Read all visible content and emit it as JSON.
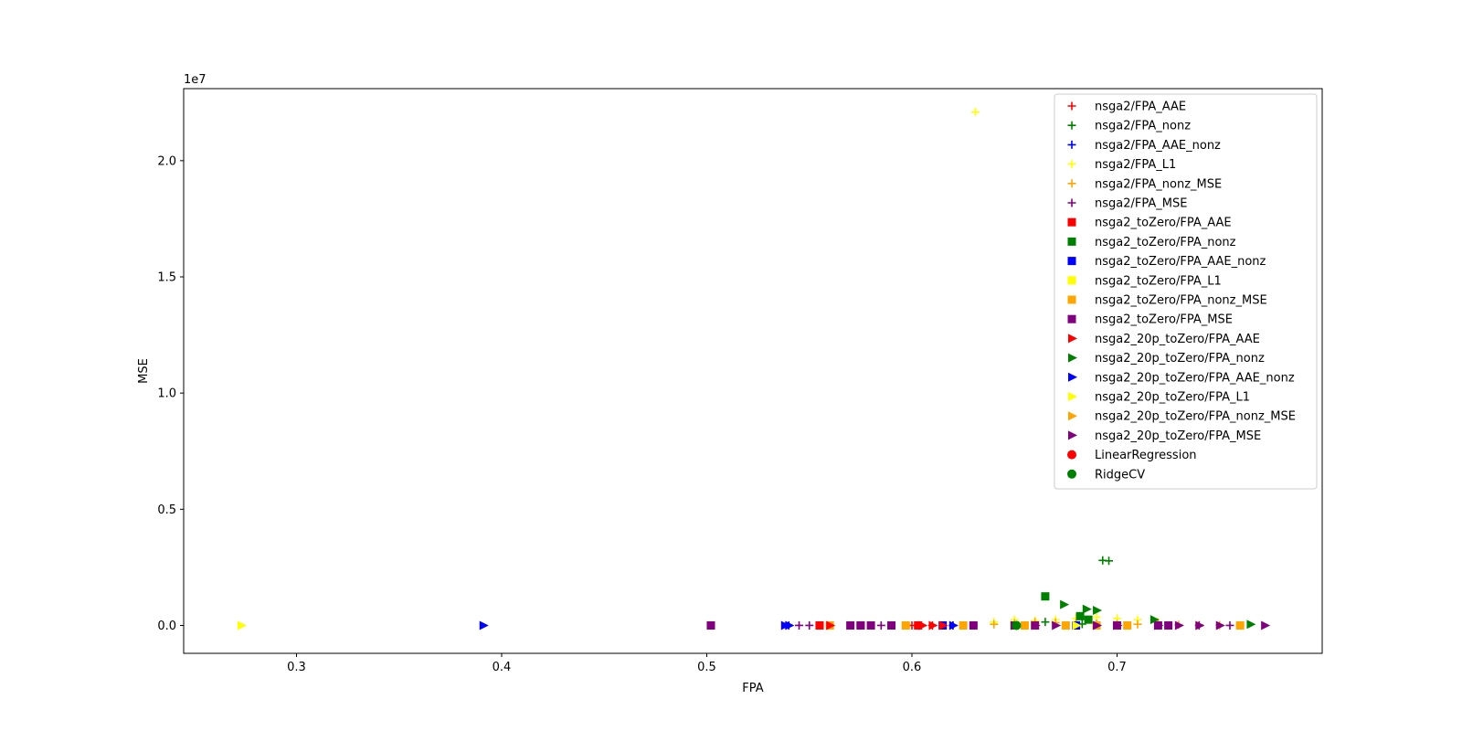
{
  "chart_data": {
    "type": "scatter",
    "xlabel": "FPA",
    "ylabel": "MSE",
    "y_offset_label": "1e7",
    "xlim": [
      0.245,
      0.8
    ],
    "ylim": [
      -1200000,
      23100000
    ],
    "x_ticks": [
      0.3,
      0.4,
      0.5,
      0.6,
      0.7
    ],
    "x_tick_labels": [
      "0.3",
      "0.4",
      "0.5",
      "0.6",
      "0.7"
    ],
    "y_ticks": [
      0,
      5000000,
      10000000,
      15000000,
      20000000
    ],
    "y_tick_labels": [
      "0.0",
      "0.5",
      "1.0",
      "1.5",
      "2.0"
    ],
    "grid": false,
    "legend_position": "upper right",
    "series": [
      {
        "name": "nsga2/FPA_AAE",
        "color": "#ff0000",
        "marker": "plus",
        "x": [
          0.56,
          0.575,
          0.6,
          0.61,
          0.62
        ],
        "y": [
          0,
          0,
          0,
          0,
          0
        ]
      },
      {
        "name": "nsga2/FPA_nonz",
        "color": "#008000",
        "marker": "plus",
        "x": [
          0.693,
          0.696,
          0.665,
          0.683
        ],
        "y": [
          2800000,
          2780000,
          150000,
          60000
        ]
      },
      {
        "name": "nsga2/FPA_AAE_nonz",
        "color": "#0000ff",
        "marker": "plus",
        "x": [
          0.54,
          0.62,
          0.66,
          0.69
        ],
        "y": [
          0,
          0,
          0,
          0
        ]
      },
      {
        "name": "nsga2/FPA_L1",
        "color": "#ffff00",
        "marker": "plus",
        "x": [
          0.631,
          0.64,
          0.65,
          0.66,
          0.67,
          0.68,
          0.69,
          0.7,
          0.71,
          0.72
        ],
        "y": [
          22100000,
          150000,
          250000,
          200000,
          250000,
          300000,
          350000,
          300000,
          250000,
          150000
        ]
      },
      {
        "name": "nsga2/FPA_nonz_MSE",
        "color": "#ffa500",
        "marker": "plus",
        "x": [
          0.64,
          0.65,
          0.66,
          0.67,
          0.68,
          0.69,
          0.7,
          0.71,
          0.72,
          0.73,
          0.74,
          0.75,
          0.76
        ],
        "y": [
          50000,
          100000,
          150000,
          120000,
          100000,
          80000,
          60000,
          50000,
          40000,
          30000,
          20000,
          10000,
          0
        ]
      },
      {
        "name": "nsga2/FPA_MSE",
        "color": "#800080",
        "marker": "plus",
        "x": [
          0.545,
          0.55,
          0.585,
          0.63,
          0.66,
          0.7,
          0.74,
          0.755
        ],
        "y": [
          0,
          0,
          0,
          0,
          0,
          0,
          0,
          0
        ]
      },
      {
        "name": "nsga2_toZero/FPA_AAE",
        "color": "#ff0000",
        "marker": "square",
        "x": [
          0.502,
          0.555,
          0.575,
          0.603
        ],
        "y": [
          0,
          0,
          0,
          0
        ]
      },
      {
        "name": "nsga2_toZero/FPA_nonz",
        "color": "#008000",
        "marker": "square",
        "x": [
          0.665,
          0.682,
          0.686,
          0.65
        ],
        "y": [
          1250000,
          400000,
          250000,
          0
        ]
      },
      {
        "name": "nsga2_toZero/FPA_AAE_nonz",
        "color": "#0000ff",
        "marker": "square",
        "x": [
          0.615,
          0.68
        ],
        "y": [
          0,
          0
        ]
      },
      {
        "name": "nsga2_toZero/FPA_L1",
        "color": "#ffff00",
        "marker": "square",
        "x": [
          0.66,
          0.69,
          0.7
        ],
        "y": [
          0,
          0,
          0
        ]
      },
      {
        "name": "nsga2_toZero/FPA_nonz_MSE",
        "color": "#ffa500",
        "marker": "square",
        "x": [
          0.56,
          0.597,
          0.625,
          0.655,
          0.675,
          0.69,
          0.705,
          0.76
        ],
        "y": [
          0,
          0,
          0,
          0,
          0,
          0,
          0,
          0
        ]
      },
      {
        "name": "nsga2_toZero/FPA_MSE",
        "color": "#800080",
        "marker": "square",
        "x": [
          0.502,
          0.57,
          0.575,
          0.58,
          0.59,
          0.63,
          0.66,
          0.7,
          0.72,
          0.725
        ],
        "y": [
          0,
          0,
          0,
          0,
          0,
          0,
          0,
          0,
          0,
          0
        ]
      },
      {
        "name": "nsga2_20p_toZero/FPA_AAE",
        "color": "#ff0000",
        "marker": "triangle-right",
        "x": [
          0.56,
          0.605,
          0.61,
          0.615
        ],
        "y": [
          0,
          0,
          0,
          0
        ]
      },
      {
        "name": "nsga2_20p_toZero/FPA_nonz",
        "color": "#008000",
        "marker": "triangle-right",
        "x": [
          0.674,
          0.685,
          0.69,
          0.718,
          0.765
        ],
        "y": [
          900000,
          700000,
          650000,
          250000,
          50000
        ]
      },
      {
        "name": "nsga2_20p_toZero/FPA_AAE_nonz",
        "color": "#0000ff",
        "marker": "triangle-right",
        "x": [
          0.391,
          0.538,
          0.54,
          0.62
        ],
        "y": [
          0,
          0,
          0,
          0
        ]
      },
      {
        "name": "nsga2_20p_toZero/FPA_L1",
        "color": "#ffff00",
        "marker": "triangle-right",
        "x": [
          0.273,
          0.68
        ],
        "y": [
          0,
          0
        ]
      },
      {
        "name": "nsga2_20p_toZero/FPA_nonz_MSE",
        "color": "#ffa500",
        "marker": "triangle-right",
        "x": [
          0.66,
          0.7,
          0.74
        ],
        "y": [
          0,
          0,
          0
        ]
      },
      {
        "name": "nsga2_20p_toZero/FPA_MSE",
        "color": "#800080",
        "marker": "triangle-right",
        "x": [
          0.65,
          0.66,
          0.67,
          0.69,
          0.7,
          0.72,
          0.73,
          0.74,
          0.75,
          0.772
        ],
        "y": [
          0,
          0,
          0,
          0,
          0,
          0,
          0,
          0,
          0,
          0
        ]
      },
      {
        "name": "LinearRegression",
        "color": "#ff0000",
        "marker": "circle",
        "x": [],
        "y": []
      },
      {
        "name": "RidgeCV",
        "color": "#008000",
        "marker": "circle",
        "x": [
          0.651
        ],
        "y": [
          0
        ]
      }
    ]
  }
}
